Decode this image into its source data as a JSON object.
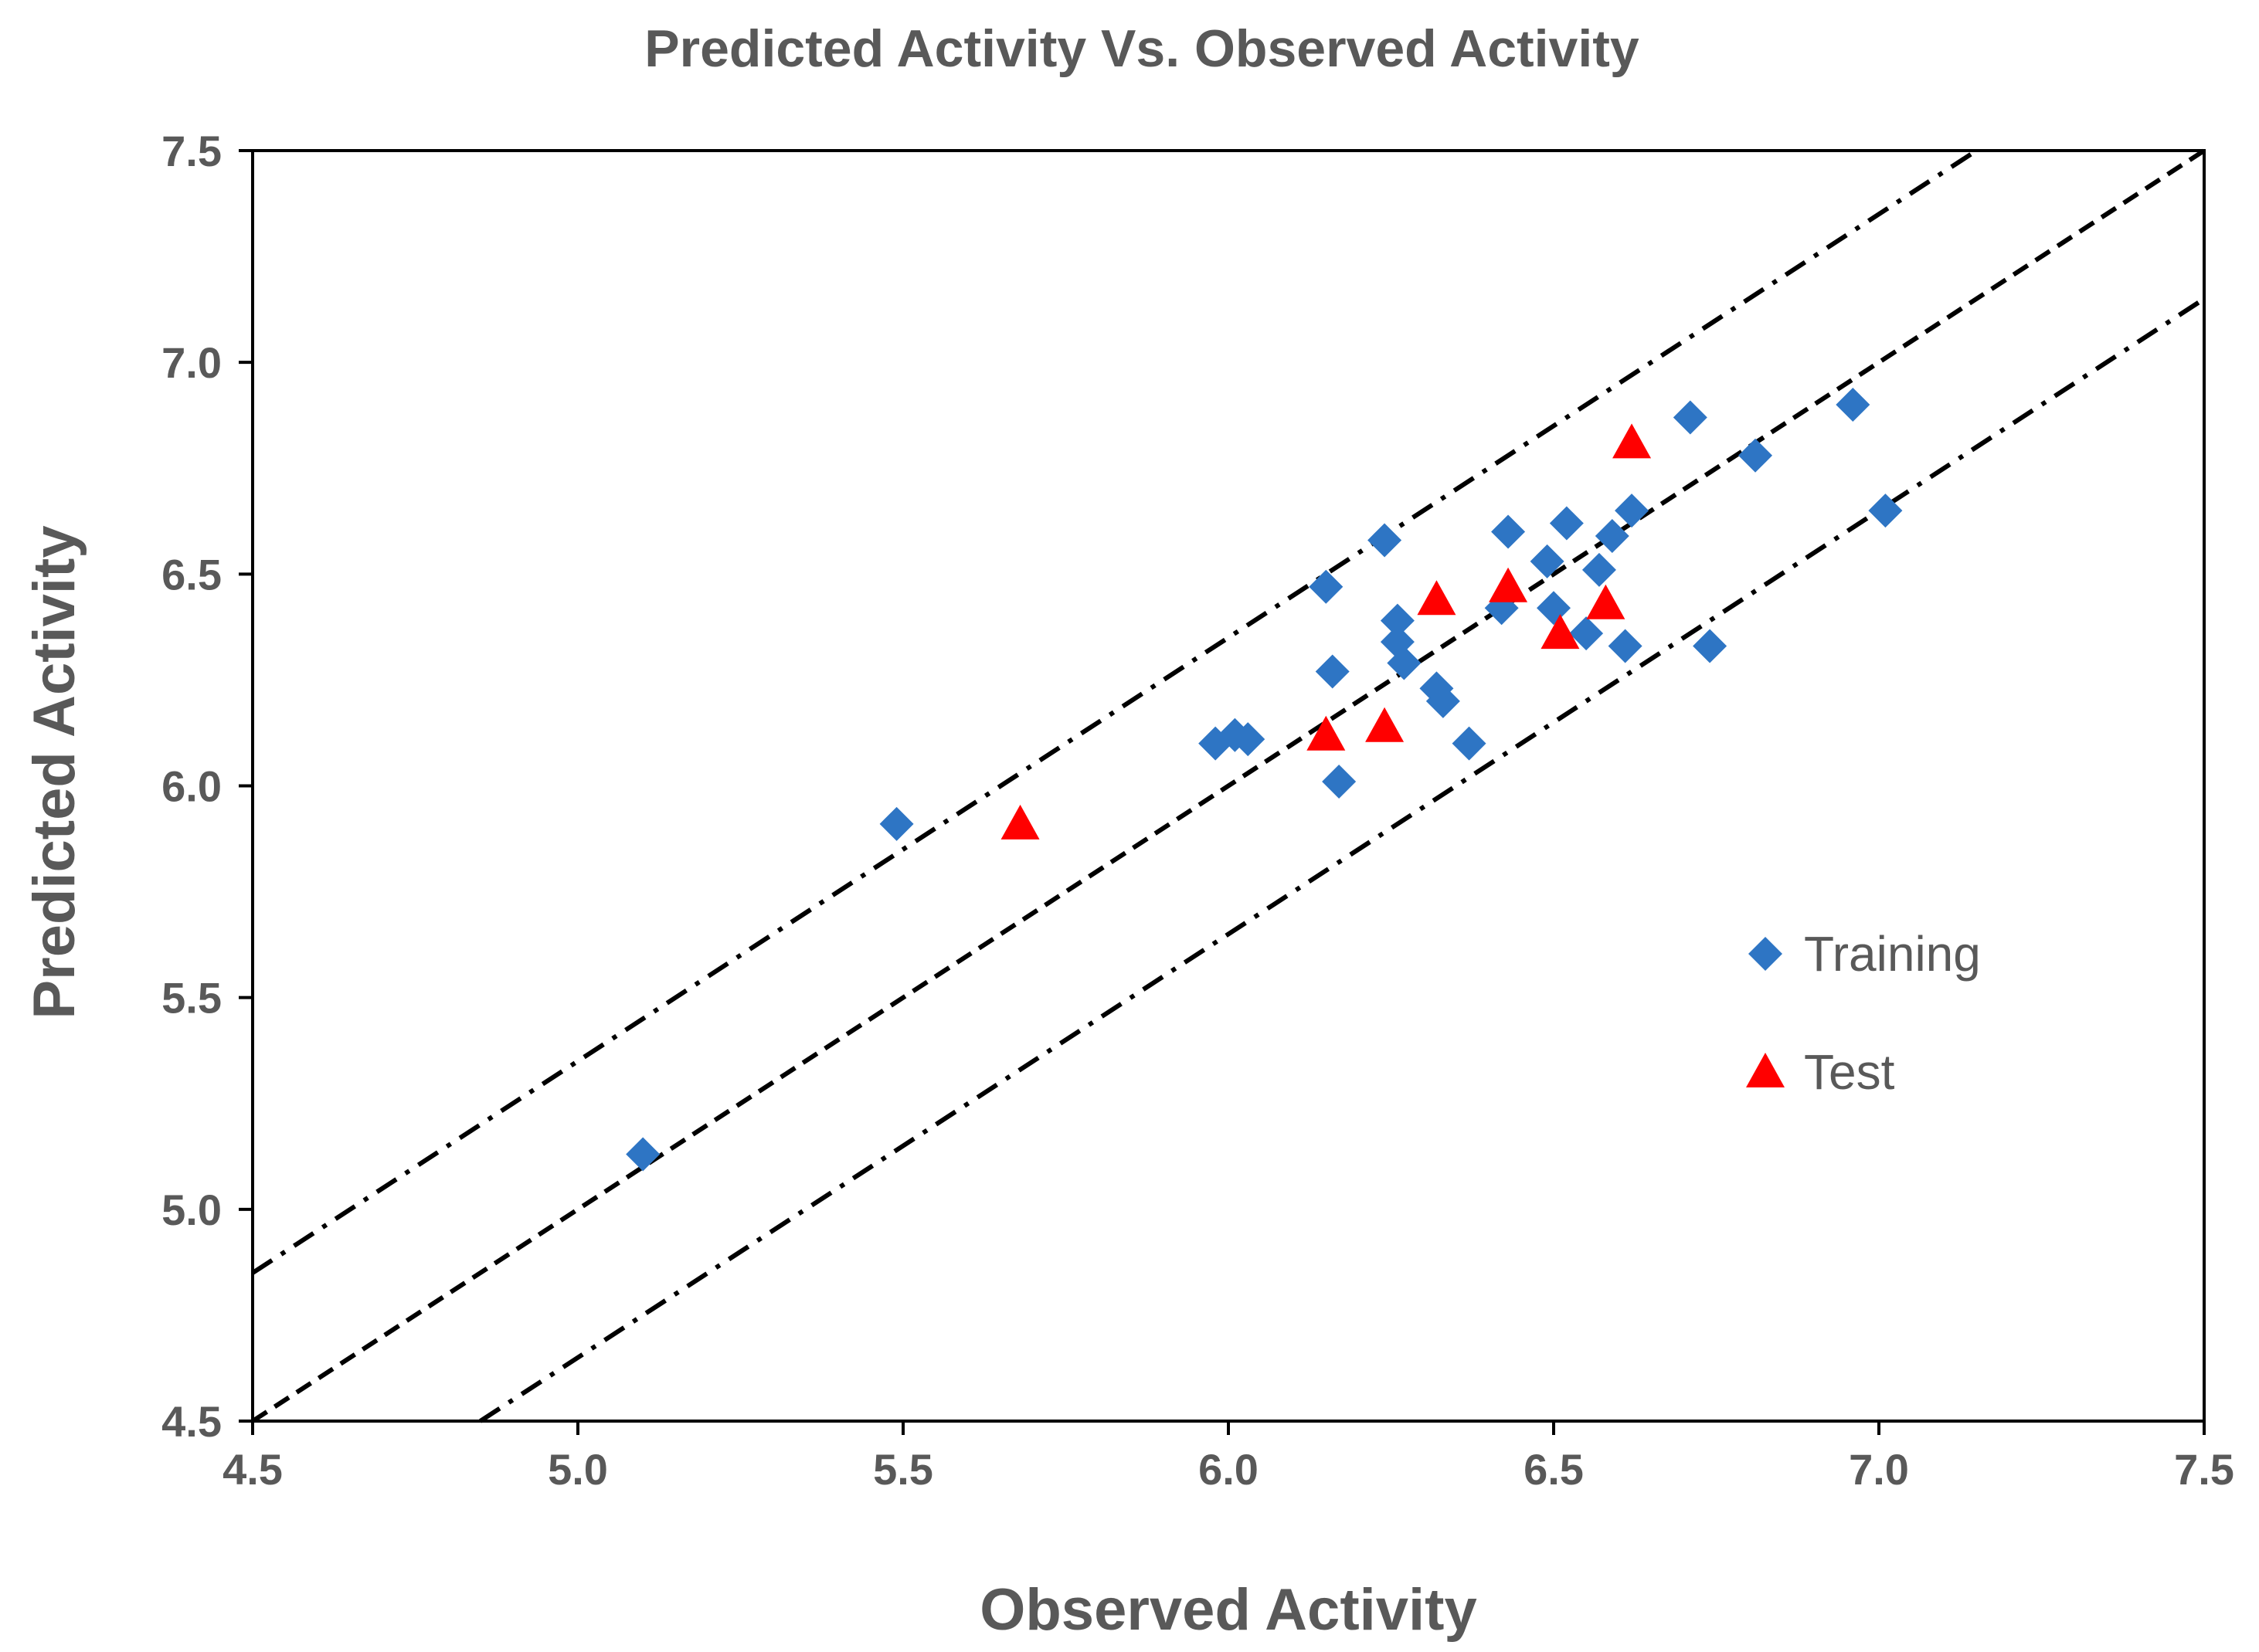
{
  "chart_data": {
    "type": "scatter",
    "title": "Predicted Activity Vs. Observed Activity",
    "xlabel": "Observed Activity",
    "ylabel": "Predicted Activity",
    "xlim": [
      4.5,
      7.5
    ],
    "ylim": [
      4.5,
      7.5
    ],
    "xticks": [
      "4.5",
      "5.0",
      "5.5",
      "6.0",
      "6.5",
      "7.0",
      "7.5"
    ],
    "yticks": [
      "4.5",
      "5.0",
      "5.5",
      "6.0",
      "6.5",
      "7.0",
      "7.5"
    ],
    "grid": false,
    "legend_position": "right-center",
    "reference_lines": [
      {
        "name": "identity",
        "style": "dashed",
        "slope": 1,
        "intercept": 0
      },
      {
        "name": "upper-bound",
        "style": "dash-dot",
        "slope": 1,
        "intercept": 0.35
      },
      {
        "name": "lower-bound",
        "style": "dash-dot",
        "slope": 1,
        "intercept": -0.35
      }
    ],
    "series": [
      {
        "name": "Training",
        "marker": "diamond",
        "color": "#2E75C4",
        "points": [
          [
            5.1,
            5.13
          ],
          [
            5.49,
            5.91
          ],
          [
            5.98,
            6.1
          ],
          [
            6.01,
            6.12
          ],
          [
            6.03,
            6.11
          ],
          [
            6.15,
            6.47
          ],
          [
            6.16,
            6.27
          ],
          [
            6.17,
            6.01
          ],
          [
            6.24,
            6.58
          ],
          [
            6.26,
            6.39
          ],
          [
            6.26,
            6.34
          ],
          [
            6.27,
            6.29
          ],
          [
            6.32,
            6.23
          ],
          [
            6.33,
            6.2
          ],
          [
            6.37,
            6.1
          ],
          [
            6.42,
            6.42
          ],
          [
            6.43,
            6.6
          ],
          [
            6.49,
            6.53
          ],
          [
            6.5,
            6.42
          ],
          [
            6.52,
            6.62
          ],
          [
            6.55,
            6.36
          ],
          [
            6.57,
            6.51
          ],
          [
            6.59,
            6.59
          ],
          [
            6.61,
            6.33
          ],
          [
            6.62,
            6.65
          ],
          [
            6.71,
            6.87
          ],
          [
            6.74,
            6.33
          ],
          [
            6.81,
            6.78
          ],
          [
            6.96,
            6.9
          ],
          [
            7.01,
            6.65
          ]
        ]
      },
      {
        "name": "Test",
        "marker": "triangle",
        "color": "#FF0000",
        "points": [
          [
            5.68,
            5.91
          ],
          [
            6.15,
            6.12
          ],
          [
            6.24,
            6.14
          ],
          [
            6.32,
            6.44
          ],
          [
            6.43,
            6.47
          ],
          [
            6.51,
            6.36
          ],
          [
            6.58,
            6.43
          ],
          [
            6.62,
            6.81
          ]
        ]
      }
    ]
  }
}
